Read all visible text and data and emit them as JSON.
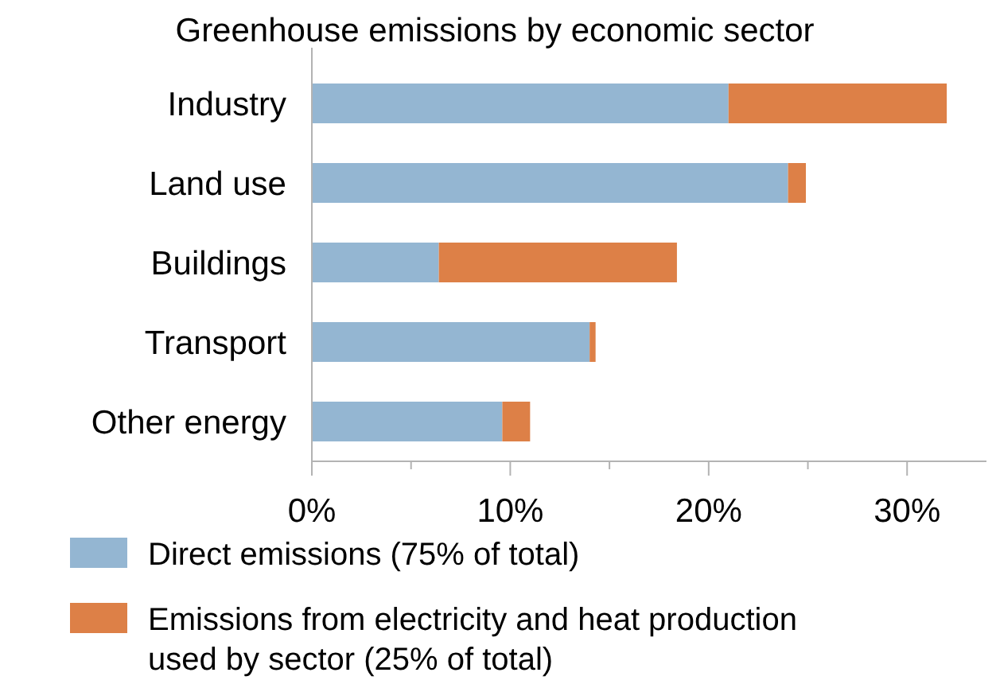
{
  "chart_data": {
    "type": "bar",
    "orientation": "horizontal",
    "stacked": true,
    "title": "Greenhouse emissions by economic sector",
    "categories": [
      "Industry",
      "Land use",
      "Buildings",
      "Transport",
      "Other energy"
    ],
    "series": [
      {
        "name": "Direct emissions (75% of total)",
        "color": "#94b6d2",
        "values": [
          21.0,
          24.0,
          6.4,
          14.0,
          9.6
        ]
      },
      {
        "name": "Emissions from electricity and heat production used by sector (25% of total)",
        "color": "#dd8047",
        "values": [
          11.0,
          0.9,
          12.0,
          0.3,
          1.4
        ]
      }
    ],
    "xlim": [
      0,
      34
    ],
    "xticks": [
      {
        "value": 0,
        "label": "0%"
      },
      {
        "value": 5,
        "label": null
      },
      {
        "value": 10,
        "label": "10%"
      },
      {
        "value": 15,
        "label": null
      },
      {
        "value": 20,
        "label": "20%"
      },
      {
        "value": 25,
        "label": null
      },
      {
        "value": 30,
        "label": "30%"
      }
    ],
    "grid": false,
    "legend": "bottom"
  }
}
